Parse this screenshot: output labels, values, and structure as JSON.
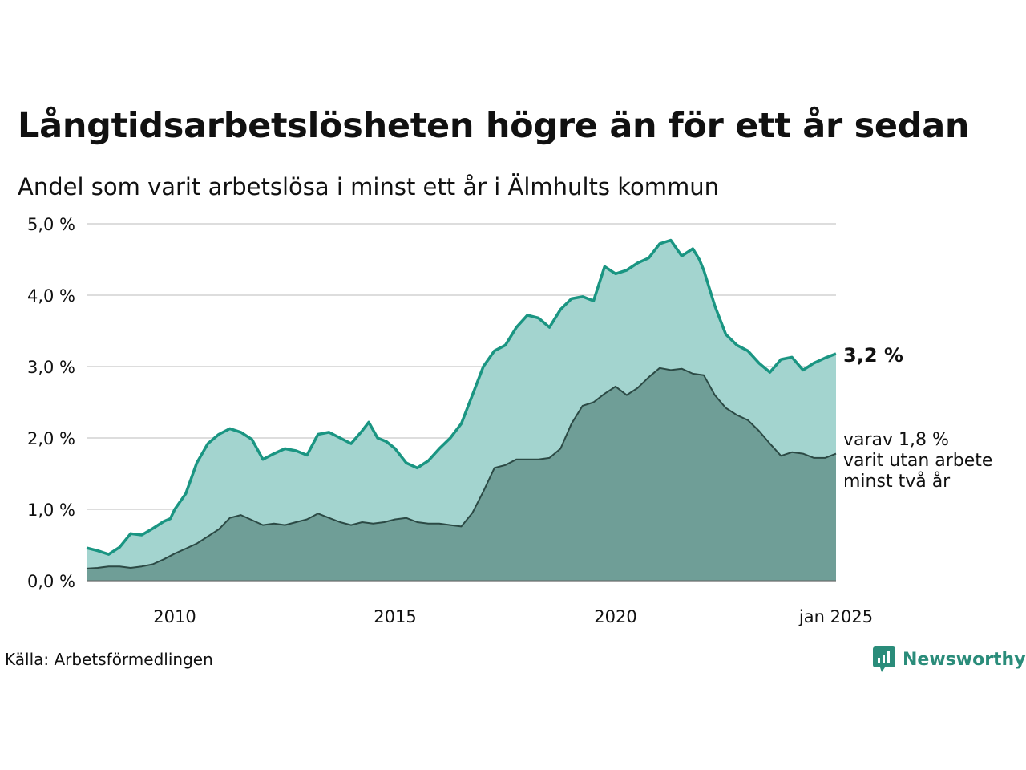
{
  "chart_data": {
    "type": "area",
    "title": "Långtidsarbetslösheten högre än för ett år sedan",
    "subtitle": "Andel som varit arbetslösa i minst ett år i Älmhults kommun",
    "ylim": [
      0,
      5
    ],
    "y_ticks": [
      "0,0 %",
      "1,0 %",
      "2,0 %",
      "3,0 %",
      "4,0 %",
      "5,0 %"
    ],
    "x_ticks": [
      {
        "x": 2010,
        "label": "2010"
      },
      {
        "x": 2015,
        "label": "2015"
      },
      {
        "x": 2020,
        "label": "2020"
      },
      {
        "x": 2025.0,
        "label": "jan 2025"
      }
    ],
    "xlim": [
      2008.0,
      2025.0
    ],
    "grid": true,
    "series": [
      {
        "name": "minst ett år",
        "color": "#1a9582",
        "fill": "#a3d4cf",
        "points": [
          [
            2008.0,
            0.46
          ],
          [
            2008.25,
            0.42
          ],
          [
            2008.5,
            0.37
          ],
          [
            2008.75,
            0.47
          ],
          [
            2009.0,
            0.66
          ],
          [
            2009.25,
            0.64
          ],
          [
            2009.5,
            0.73
          ],
          [
            2009.75,
            0.83
          ],
          [
            2009.9,
            0.87
          ],
          [
            2010.0,
            1.0
          ],
          [
            2010.25,
            1.22
          ],
          [
            2010.5,
            1.65
          ],
          [
            2010.75,
            1.92
          ],
          [
            2011.0,
            2.05
          ],
          [
            2011.25,
            2.13
          ],
          [
            2011.5,
            2.08
          ],
          [
            2011.75,
            1.98
          ],
          [
            2012.0,
            1.7
          ],
          [
            2012.25,
            1.78
          ],
          [
            2012.5,
            1.85
          ],
          [
            2012.75,
            1.82
          ],
          [
            2013.0,
            1.76
          ],
          [
            2013.25,
            2.05
          ],
          [
            2013.5,
            2.08
          ],
          [
            2013.75,
            2.0
          ],
          [
            2014.0,
            1.92
          ],
          [
            2014.25,
            2.1
          ],
          [
            2014.4,
            2.22
          ],
          [
            2014.6,
            2.0
          ],
          [
            2014.8,
            1.95
          ],
          [
            2015.0,
            1.85
          ],
          [
            2015.25,
            1.65
          ],
          [
            2015.5,
            1.58
          ],
          [
            2015.75,
            1.68
          ],
          [
            2016.0,
            1.85
          ],
          [
            2016.25,
            2.0
          ],
          [
            2016.5,
            2.2
          ],
          [
            2016.75,
            2.6
          ],
          [
            2017.0,
            3.0
          ],
          [
            2017.25,
            3.22
          ],
          [
            2017.5,
            3.3
          ],
          [
            2017.75,
            3.55
          ],
          [
            2018.0,
            3.72
          ],
          [
            2018.25,
            3.68
          ],
          [
            2018.5,
            3.55
          ],
          [
            2018.75,
            3.8
          ],
          [
            2019.0,
            3.95
          ],
          [
            2019.25,
            3.98
          ],
          [
            2019.5,
            3.92
          ],
          [
            2019.75,
            4.4
          ],
          [
            2020.0,
            4.3
          ],
          [
            2020.25,
            4.35
          ],
          [
            2020.5,
            4.45
          ],
          [
            2020.75,
            4.52
          ],
          [
            2021.0,
            4.72
          ],
          [
            2021.25,
            4.77
          ],
          [
            2021.5,
            4.55
          ],
          [
            2021.75,
            4.65
          ],
          [
            2021.9,
            4.5
          ],
          [
            2022.0,
            4.35
          ],
          [
            2022.25,
            3.85
          ],
          [
            2022.5,
            3.45
          ],
          [
            2022.75,
            3.3
          ],
          [
            2023.0,
            3.22
          ],
          [
            2023.25,
            3.05
          ],
          [
            2023.5,
            2.92
          ],
          [
            2023.75,
            3.1
          ],
          [
            2024.0,
            3.13
          ],
          [
            2024.25,
            2.95
          ],
          [
            2024.5,
            3.05
          ],
          [
            2024.75,
            3.12
          ],
          [
            2025.0,
            3.18
          ]
        ]
      },
      {
        "name": "minst två år",
        "color": "#2c4a45",
        "fill": "#6f9e97",
        "points": [
          [
            2008.0,
            0.17
          ],
          [
            2008.25,
            0.18
          ],
          [
            2008.5,
            0.2
          ],
          [
            2008.75,
            0.2
          ],
          [
            2009.0,
            0.18
          ],
          [
            2009.25,
            0.2
          ],
          [
            2009.5,
            0.23
          ],
          [
            2009.75,
            0.3
          ],
          [
            2010.0,
            0.38
          ],
          [
            2010.25,
            0.45
          ],
          [
            2010.5,
            0.52
          ],
          [
            2010.75,
            0.62
          ],
          [
            2011.0,
            0.72
          ],
          [
            2011.25,
            0.88
          ],
          [
            2011.5,
            0.92
          ],
          [
            2011.75,
            0.85
          ],
          [
            2012.0,
            0.78
          ],
          [
            2012.25,
            0.8
          ],
          [
            2012.5,
            0.78
          ],
          [
            2012.75,
            0.82
          ],
          [
            2013.0,
            0.86
          ],
          [
            2013.25,
            0.94
          ],
          [
            2013.5,
            0.88
          ],
          [
            2013.75,
            0.82
          ],
          [
            2014.0,
            0.78
          ],
          [
            2014.25,
            0.82
          ],
          [
            2014.5,
            0.8
          ],
          [
            2014.75,
            0.82
          ],
          [
            2015.0,
            0.86
          ],
          [
            2015.25,
            0.88
          ],
          [
            2015.5,
            0.82
          ],
          [
            2015.75,
            0.8
          ],
          [
            2016.0,
            0.8
          ],
          [
            2016.25,
            0.78
          ],
          [
            2016.5,
            0.76
          ],
          [
            2016.75,
            0.95
          ],
          [
            2017.0,
            1.25
          ],
          [
            2017.25,
            1.58
          ],
          [
            2017.5,
            1.62
          ],
          [
            2017.75,
            1.7
          ],
          [
            2018.0,
            1.7
          ],
          [
            2018.25,
            1.7
          ],
          [
            2018.5,
            1.72
          ],
          [
            2018.75,
            1.85
          ],
          [
            2019.0,
            2.2
          ],
          [
            2019.25,
            2.45
          ],
          [
            2019.5,
            2.5
          ],
          [
            2019.75,
            2.62
          ],
          [
            2020.0,
            2.72
          ],
          [
            2020.25,
            2.6
          ],
          [
            2020.5,
            2.7
          ],
          [
            2020.75,
            2.85
          ],
          [
            2021.0,
            2.98
          ],
          [
            2021.25,
            2.95
          ],
          [
            2021.5,
            2.97
          ],
          [
            2021.75,
            2.9
          ],
          [
            2022.0,
            2.88
          ],
          [
            2022.25,
            2.6
          ],
          [
            2022.5,
            2.42
          ],
          [
            2022.75,
            2.32
          ],
          [
            2023.0,
            2.25
          ],
          [
            2023.25,
            2.1
          ],
          [
            2023.5,
            1.92
          ],
          [
            2023.75,
            1.75
          ],
          [
            2024.0,
            1.8
          ],
          [
            2024.25,
            1.78
          ],
          [
            2024.5,
            1.72
          ],
          [
            2024.75,
            1.72
          ],
          [
            2025.0,
            1.78
          ]
        ]
      }
    ],
    "annotations": {
      "main": "3,2 %",
      "sub_lines": [
        "varav 1,8 %",
        "varit utan arbete",
        "minst två år"
      ]
    },
    "source": "Källa: Arbetsförmedlingen",
    "logo": "Newsworthy"
  }
}
